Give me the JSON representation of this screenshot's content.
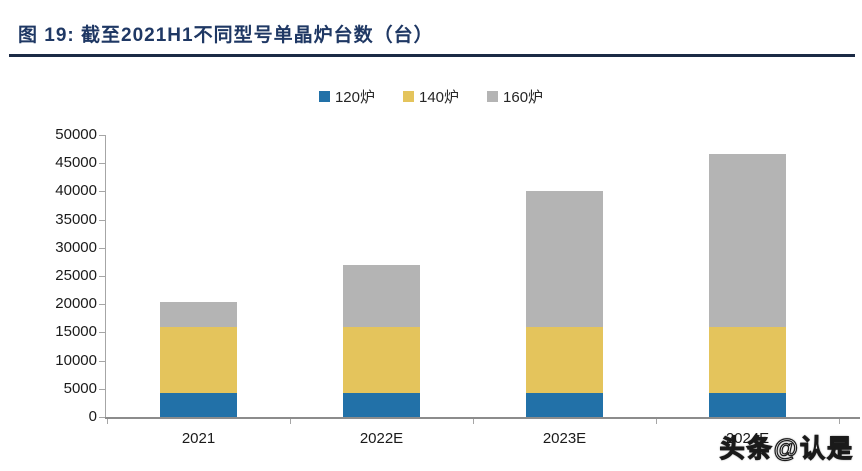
{
  "figure": {
    "title": "图 19: 截至2021H1不同型号单晶炉台数（台）"
  },
  "watermark": {
    "text": "头条@认是"
  },
  "chart_data": {
    "type": "bar",
    "stacked": true,
    "title": "截至2021H1不同型号单晶炉台数（台）",
    "categories": [
      "2021",
      "2022E",
      "2023E",
      "2024E"
    ],
    "series": [
      {
        "name": "120炉",
        "color": "#2271A8",
        "values": [
          4200,
          4200,
          4200,
          4200
        ]
      },
      {
        "name": "140炉",
        "color": "#E4C45C",
        "values": [
          11800,
          11800,
          11800,
          11800
        ]
      },
      {
        "name": "160炉",
        "color": "#B4B4B4",
        "values": [
          4400,
          11000,
          24000,
          30600
        ]
      }
    ],
    "totals": [
      20400,
      27000,
      40000,
      46600
    ],
    "xlabel": "",
    "ylabel": "",
    "ylim": [
      0,
      50000
    ],
    "y_ticks": [
      0,
      5000,
      10000,
      15000,
      20000,
      25000,
      30000,
      35000,
      40000,
      45000,
      50000
    ],
    "grid": false,
    "legend_position": "top-center"
  }
}
